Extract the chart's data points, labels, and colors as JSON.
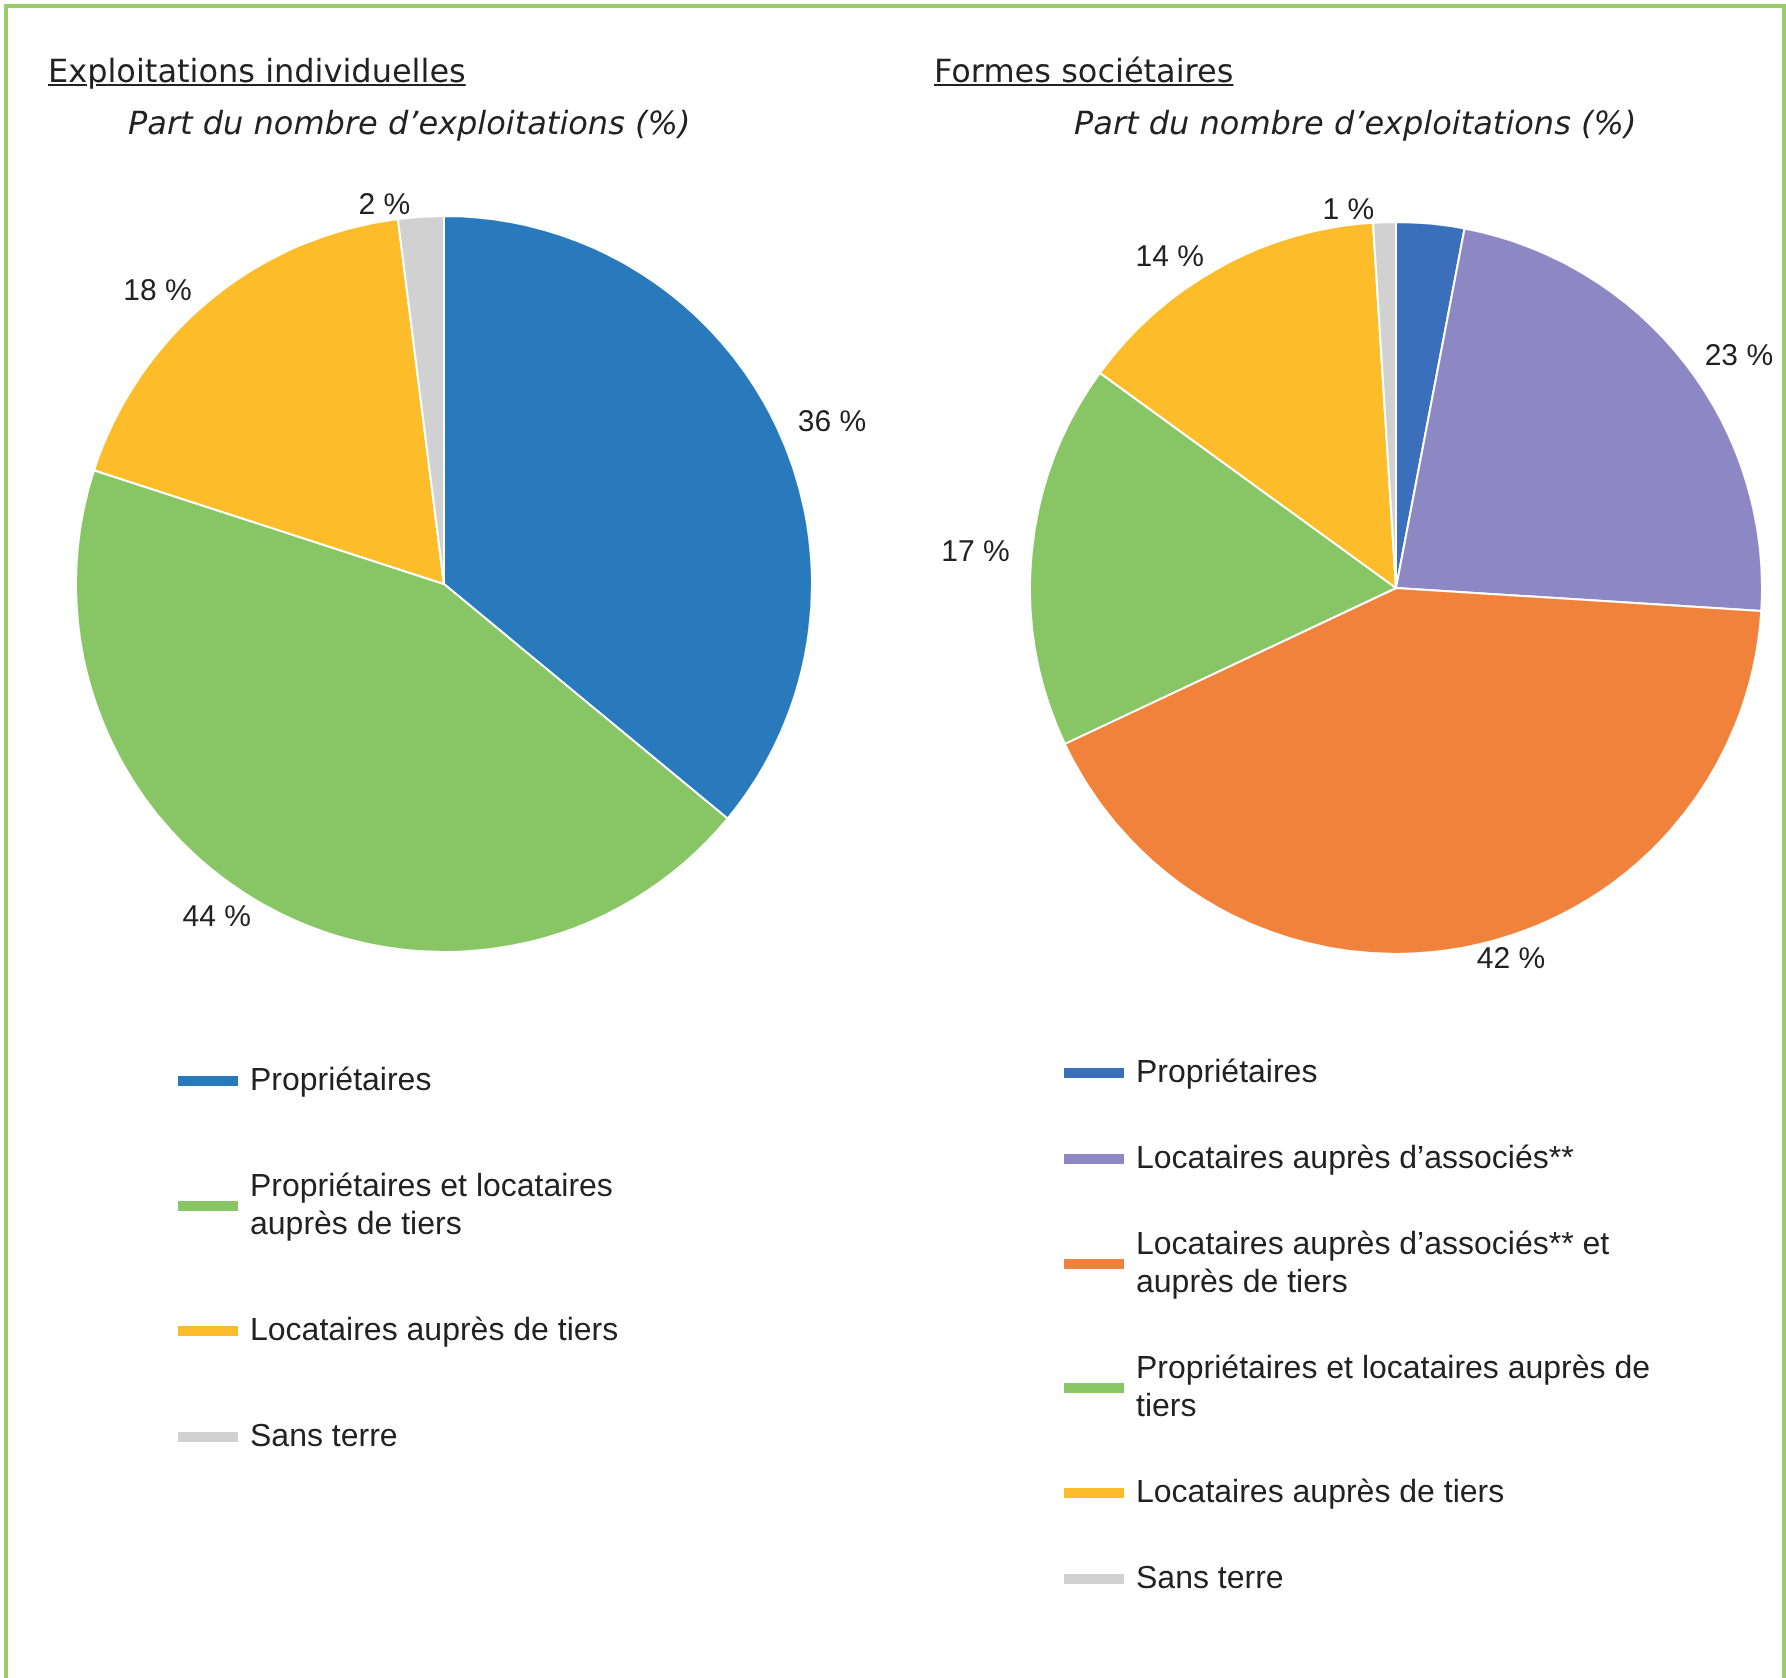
{
  "chart_data": [
    {
      "type": "pie",
      "title": "Exploitations individuelles",
      "subtitle": "Part du nombre d’exploitations (%)",
      "categories": [
        "Propriétaires",
        "Propriétaires et locataires auprès de tiers",
        "Locataires auprès de tiers",
        "Sans terre"
      ],
      "values": [
        36,
        44,
        18,
        2
      ],
      "colors": [
        "#2979bd",
        "#88c665",
        "#fdbd2b",
        "#d1d1d1"
      ],
      "value_labels": [
        "36 %",
        "44 %",
        "18 %",
        "2 %"
      ],
      "legend": "bottom"
    },
    {
      "type": "pie",
      "title": "Formes sociétaires",
      "subtitle": "Part du nombre d’exploitations (%)",
      "categories": [
        "Propriétaires",
        "Locataires auprès d’associés**",
        "Locataires auprès d’associés** et auprès de tiers",
        "Propriétaires et locataires auprès de tiers",
        "Locataires auprès de tiers",
        "Sans terre"
      ],
      "values": [
        3,
        23,
        42,
        17,
        14,
        1
      ],
      "colors": [
        "#3a70bb",
        "#8d87c3",
        "#f0823b",
        "#88c665",
        "#fdbd2b",
        "#d1d1d1"
      ],
      "value_labels": [
        null,
        "23 %",
        "42 %",
        "17 %",
        "14 %",
        "1 %"
      ],
      "legend": "bottom"
    }
  ]
}
